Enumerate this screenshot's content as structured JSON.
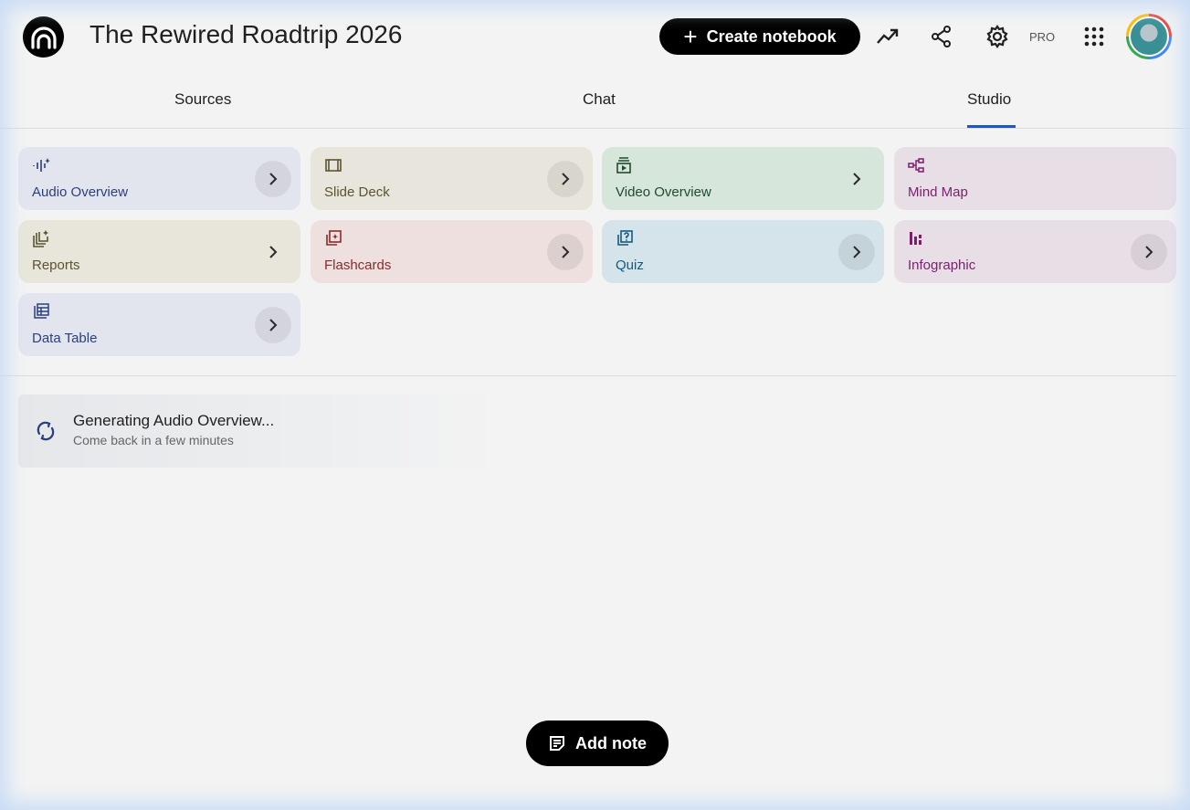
{
  "header": {
    "title": "The Rewired Roadtrip 2026",
    "create_label": "Create notebook",
    "pro_label": "PRO",
    "icons": [
      "analytics-icon",
      "share-icon",
      "settings-icon",
      "apps-grid-icon"
    ]
  },
  "tabs": [
    {
      "label": "Sources"
    },
    {
      "label": "Chat"
    },
    {
      "label": "Studio",
      "active": true
    }
  ],
  "studio": {
    "cards": [
      {
        "label": "Audio Overview",
        "icon": "audio-waveform-icon",
        "bg": "#e3e5ee",
        "color": "#2a3f7e",
        "chevron_bg": true
      },
      {
        "label": "Slide Deck",
        "icon": "slides-icon",
        "bg": "#e8e6dc",
        "color": "#5b5330",
        "chevron_bg": true
      },
      {
        "label": "Video Overview",
        "icon": "video-icon",
        "bg": "#d6e6da",
        "color": "#1f4b2e",
        "chevron_bg": false
      },
      {
        "label": "Mind Map",
        "icon": "mind-map-icon",
        "bg": "#e8dfe6",
        "color": "#7a1f6e",
        "chevron": false
      },
      {
        "label": "Reports",
        "icon": "reports-icon",
        "bg": "#e8e6da",
        "color": "#5b5330",
        "chevron_bg": false
      },
      {
        "label": "Flashcards",
        "icon": "flashcards-icon",
        "bg": "#ede0de",
        "color": "#8c2a2a",
        "chevron_bg": true
      },
      {
        "label": "Quiz",
        "icon": "quiz-icon",
        "bg": "#d4e4ea",
        "color": "#135a80",
        "chevron_bg": true
      },
      {
        "label": "Infographic",
        "icon": "infographic-icon",
        "bg": "#e8dfe6",
        "color": "#7a1f6e",
        "chevron_bg": true
      },
      {
        "label": "Data Table",
        "icon": "data-table-icon",
        "bg": "#e3e5ee",
        "color": "#2a3f7e",
        "chevron_bg": true
      }
    ]
  },
  "generating": {
    "title": "Generating Audio Overview...",
    "subtitle": "Come back in a few minutes"
  },
  "add_note_label": "Add note",
  "accent": "#1a57c9"
}
